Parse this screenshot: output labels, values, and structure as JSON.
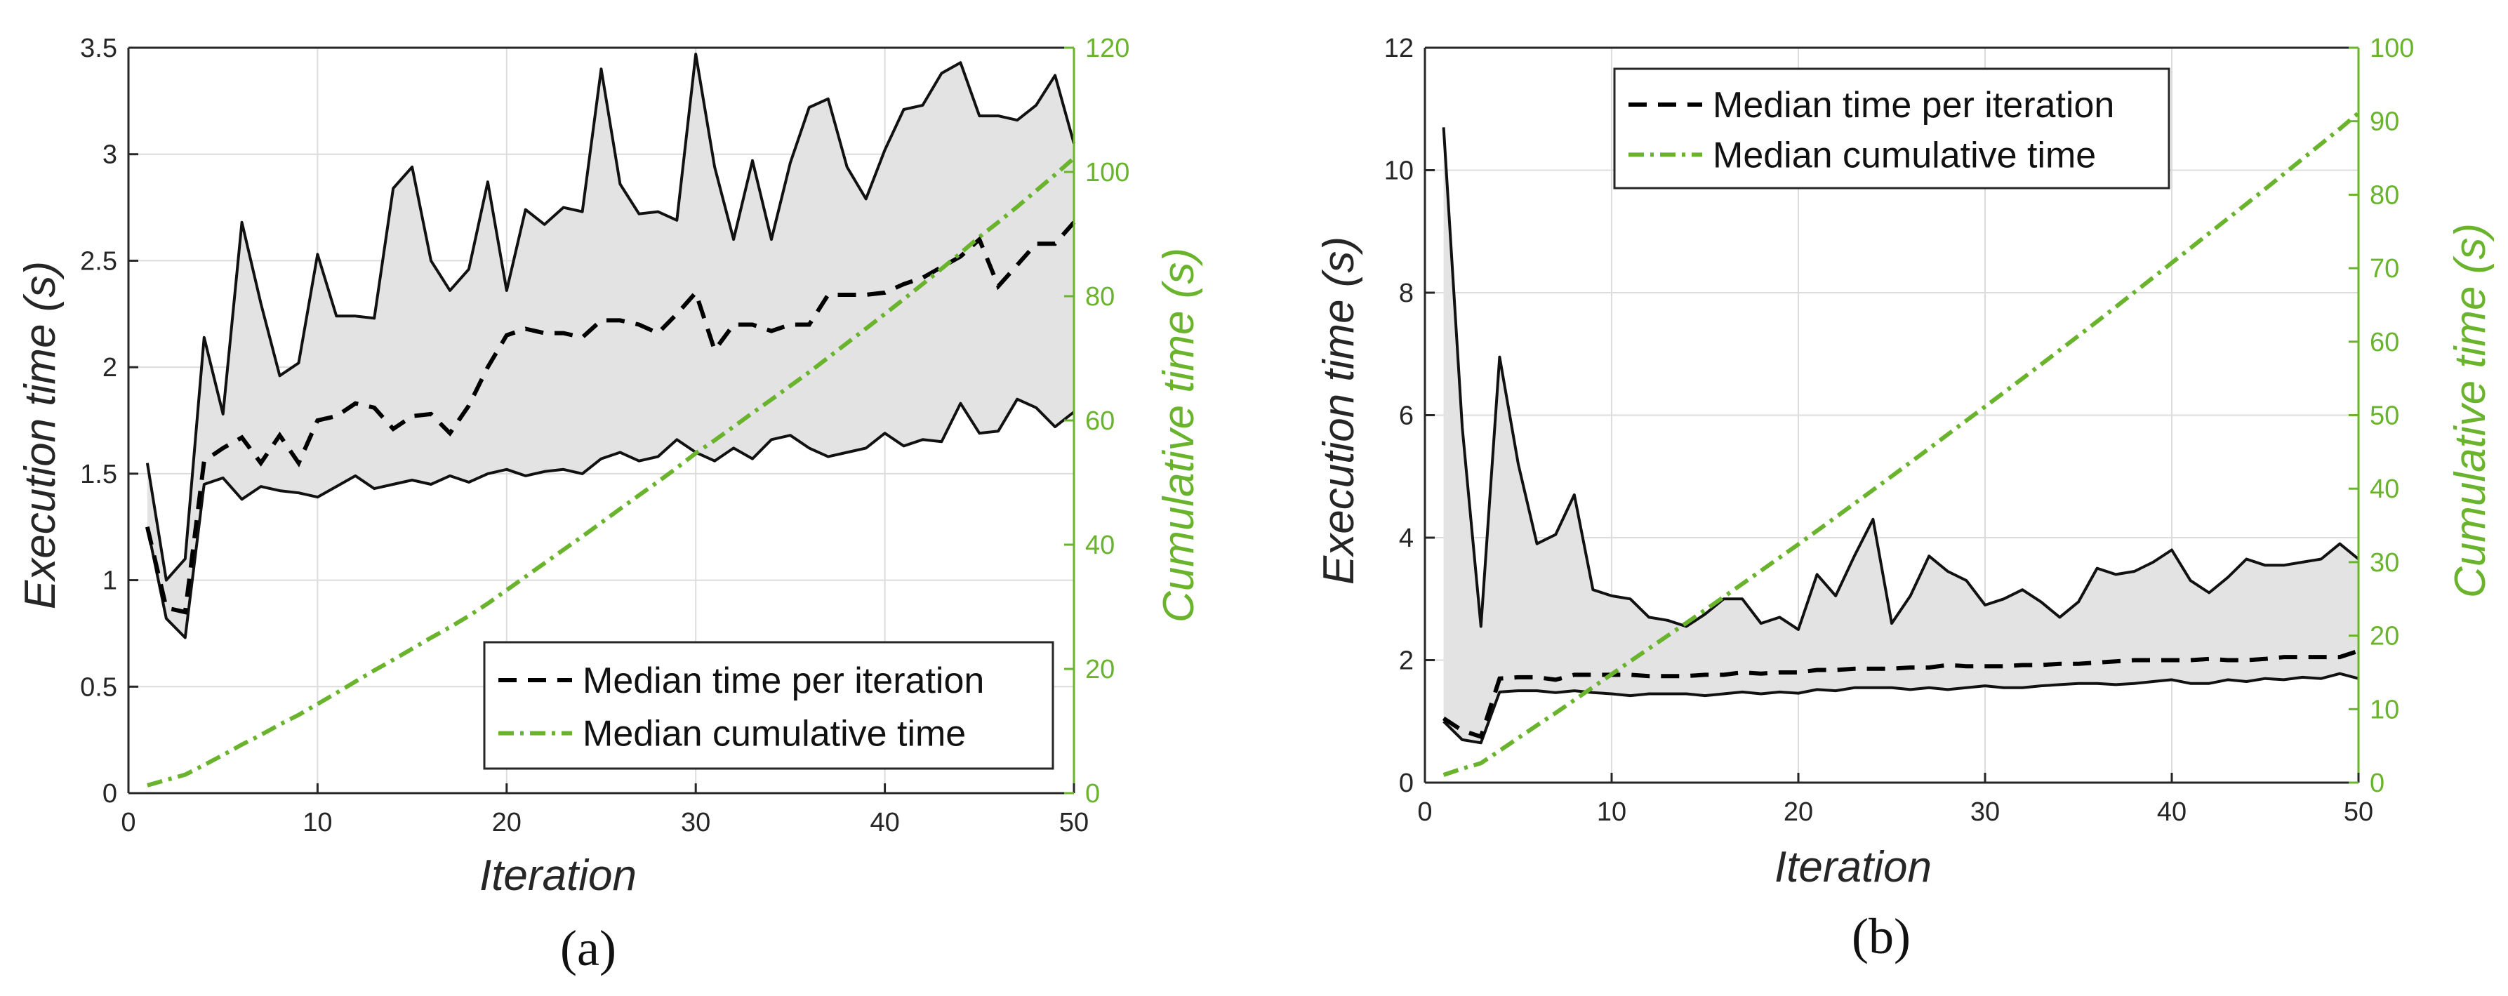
{
  "chart_data": [
    {
      "type": "line",
      "panel": "(a)",
      "xlabel": "Iteration",
      "ylabel": "Execution time (s)",
      "y2label": "Cumulative time (s)",
      "xlim": [
        0,
        50
      ],
      "ylim": [
        0,
        3.5
      ],
      "y2lim": [
        0,
        120
      ],
      "xticks": [
        0,
        10,
        20,
        30,
        40,
        50
      ],
      "yticks": [
        0,
        0.5,
        1,
        1.5,
        2,
        2.5,
        3,
        3.5
      ],
      "y2ticks": [
        0,
        20,
        40,
        60,
        80,
        100,
        120
      ],
      "grid": true,
      "legend_position": "bottom-right",
      "legend": [
        "Median time per iteration",
        "Median cumulative time"
      ],
      "colors": {
        "median": "#000000",
        "cumulative": "#6ab42d",
        "band": "#e3e3e3",
        "grid": "#dcdcdc"
      },
      "x": [
        1,
        2,
        3,
        4,
        5,
        6,
        7,
        8,
        9,
        10,
        11,
        12,
        13,
        14,
        15,
        16,
        17,
        18,
        19,
        20,
        21,
        22,
        23,
        24,
        25,
        26,
        27,
        28,
        29,
        30,
        31,
        32,
        33,
        34,
        35,
        36,
        37,
        38,
        39,
        40,
        41,
        42,
        43,
        44,
        45,
        46,
        47,
        48,
        49,
        50
      ],
      "max_time": [
        1.55,
        1.0,
        1.1,
        2.14,
        1.78,
        2.68,
        2.3,
        1.96,
        2.02,
        2.53,
        2.24,
        2.24,
        2.23,
        2.84,
        2.94,
        2.5,
        2.36,
        2.46,
        2.87,
        2.36,
        2.74,
        2.67,
        2.75,
        2.73,
        3.4,
        2.86,
        2.72,
        2.73,
        2.69,
        3.47,
        2.94,
        2.6,
        2.97,
        2.6,
        2.96,
        3.22,
        3.26,
        2.94,
        2.79,
        3.02,
        3.21,
        3.23,
        3.38,
        3.43,
        3.18,
        3.18,
        3.16,
        3.23,
        3.37,
        3.05
      ],
      "median_time": [
        1.25,
        0.87,
        0.85,
        1.56,
        1.62,
        1.67,
        1.55,
        1.68,
        1.55,
        1.75,
        1.77,
        1.83,
        1.81,
        1.71,
        1.77,
        1.78,
        1.69,
        1.82,
        2.0,
        2.15,
        2.18,
        2.16,
        2.16,
        2.14,
        2.22,
        2.22,
        2.2,
        2.16,
        2.25,
        2.35,
        2.08,
        2.2,
        2.2,
        2.17,
        2.2,
        2.2,
        2.34,
        2.34,
        2.34,
        2.35,
        2.39,
        2.42,
        2.47,
        2.52,
        2.6,
        2.38,
        2.48,
        2.58,
        2.58,
        2.68
      ],
      "min_time": [
        1.25,
        0.82,
        0.73,
        1.45,
        1.48,
        1.38,
        1.44,
        1.42,
        1.41,
        1.39,
        1.44,
        1.49,
        1.43,
        1.45,
        1.47,
        1.45,
        1.49,
        1.46,
        1.5,
        1.52,
        1.49,
        1.51,
        1.52,
        1.5,
        1.57,
        1.6,
        1.56,
        1.58,
        1.66,
        1.6,
        1.56,
        1.62,
        1.57,
        1.66,
        1.68,
        1.62,
        1.58,
        1.6,
        1.62,
        1.69,
        1.63,
        1.66,
        1.65,
        1.83,
        1.69,
        1.7,
        1.85,
        1.81,
        1.72,
        1.79
      ],
      "cumulative_time": [
        1.25,
        2.12,
        2.97,
        4.53,
        6.15,
        7.82,
        9.37,
        11.05,
        12.6,
        14.35,
        16.12,
        17.95,
        19.76,
        21.47,
        23.24,
        25.02,
        26.71,
        28.53,
        30.53,
        32.68,
        34.86,
        37.02,
        39.18,
        41.32,
        43.54,
        45.76,
        47.96,
        50.12,
        52.37,
        54.72,
        56.8,
        59.0,
        61.2,
        63.37,
        65.57,
        67.77,
        70.11,
        72.45,
        74.79,
        77.14,
        79.53,
        81.95,
        84.42,
        86.94,
        89.54,
        91.92,
        94.4,
        96.98,
        99.56,
        102.24
      ]
    },
    {
      "type": "line",
      "panel": "(b)",
      "xlabel": "Iteration",
      "ylabel": "Execution time (s)",
      "y2label": "Cumulative time (s)",
      "xlim": [
        0,
        50
      ],
      "ylim": [
        0,
        12
      ],
      "y2lim": [
        0,
        100
      ],
      "xticks": [
        0,
        10,
        20,
        30,
        40,
        50
      ],
      "yticks": [
        0,
        2,
        4,
        6,
        8,
        10,
        12
      ],
      "y2ticks": [
        0,
        10,
        20,
        30,
        40,
        50,
        60,
        70,
        80,
        90,
        100
      ],
      "grid": true,
      "legend_position": "top-left",
      "legend": [
        "Median time per iteration",
        "Median cumulative time"
      ],
      "colors": {
        "median": "#000000",
        "cumulative": "#6ab42d",
        "band": "#e3e3e3",
        "grid": "#dcdcdc"
      },
      "x": [
        1,
        2,
        3,
        4,
        5,
        6,
        7,
        8,
        9,
        10,
        11,
        12,
        13,
        14,
        15,
        16,
        17,
        18,
        19,
        20,
        21,
        22,
        23,
        24,
        25,
        26,
        27,
        28,
        29,
        30,
        31,
        32,
        33,
        34,
        35,
        36,
        37,
        38,
        39,
        40,
        41,
        42,
        43,
        44,
        45,
        46,
        47,
        48,
        49,
        50
      ],
      "max_time": [
        10.7,
        5.8,
        2.55,
        6.95,
        5.2,
        3.9,
        4.05,
        4.7,
        3.15,
        3.05,
        3.0,
        2.7,
        2.65,
        2.55,
        2.75,
        3.0,
        3.0,
        2.6,
        2.7,
        2.5,
        3.4,
        3.05,
        3.7,
        4.3,
        2.6,
        3.05,
        3.7,
        3.45,
        3.3,
        2.9,
        3.0,
        3.15,
        2.95,
        2.7,
        2.95,
        3.5,
        3.4,
        3.45,
        3.6,
        3.8,
        3.3,
        3.1,
        3.35,
        3.65,
        3.55,
        3.55,
        3.6,
        3.65,
        3.9,
        3.65
      ],
      "median_time": [
        1.05,
        0.85,
        0.75,
        1.7,
        1.72,
        1.72,
        1.68,
        1.76,
        1.76,
        1.76,
        1.76,
        1.74,
        1.74,
        1.74,
        1.76,
        1.76,
        1.8,
        1.78,
        1.8,
        1.8,
        1.84,
        1.84,
        1.86,
        1.86,
        1.86,
        1.88,
        1.88,
        1.92,
        1.9,
        1.9,
        1.9,
        1.92,
        1.92,
        1.94,
        1.94,
        1.96,
        1.98,
        2.0,
        2.0,
        2.0,
        2.0,
        2.02,
        2.0,
        2.0,
        2.02,
        2.05,
        2.05,
        2.05,
        2.05,
        2.15
      ],
      "min_time": [
        1.0,
        0.7,
        0.65,
        1.48,
        1.5,
        1.5,
        1.47,
        1.5,
        1.47,
        1.45,
        1.42,
        1.45,
        1.45,
        1.45,
        1.42,
        1.45,
        1.48,
        1.45,
        1.48,
        1.46,
        1.52,
        1.5,
        1.55,
        1.55,
        1.55,
        1.52,
        1.55,
        1.52,
        1.55,
        1.58,
        1.55,
        1.55,
        1.58,
        1.6,
        1.62,
        1.62,
        1.6,
        1.62,
        1.65,
        1.68,
        1.62,
        1.62,
        1.68,
        1.65,
        1.7,
        1.68,
        1.72,
        1.7,
        1.78,
        1.7
      ],
      "cumulative_time": [
        1.05,
        1.9,
        2.65,
        4.35,
        6.07,
        7.79,
        9.47,
        11.23,
        12.99,
        14.75,
        16.51,
        18.25,
        19.99,
        21.73,
        23.49,
        25.25,
        27.05,
        28.83,
        30.63,
        32.43,
        34.27,
        36.11,
        37.97,
        39.83,
        41.69,
        43.57,
        45.45,
        47.37,
        49.27,
        51.17,
        53.07,
        54.99,
        56.91,
        58.85,
        60.79,
        62.75,
        64.73,
        66.73,
        68.73,
        70.73,
        72.73,
        74.75,
        76.75,
        78.75,
        80.77,
        82.82,
        84.87,
        86.92,
        88.97,
        91.12
      ]
    }
  ]
}
